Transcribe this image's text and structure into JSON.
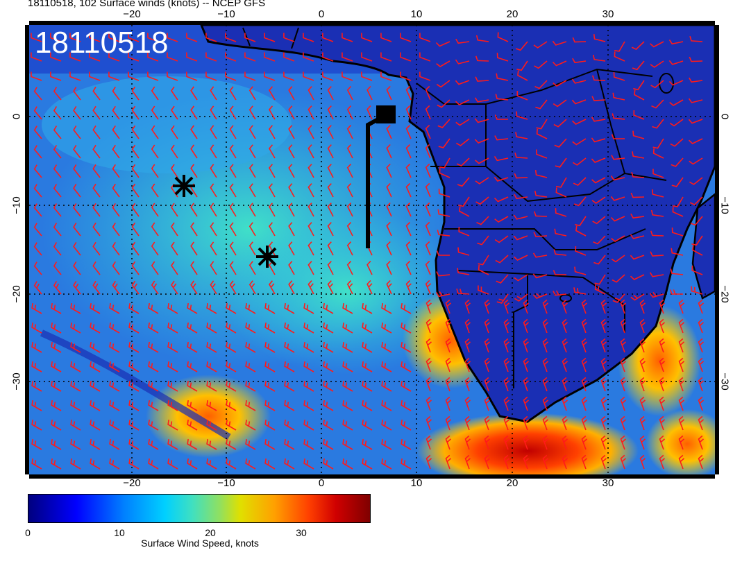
{
  "title": "18110518, 102 Surface winds (knots) -- NCEP GFS",
  "stamp": "18110518",
  "x_ticks": [
    "−20",
    "−10",
    "0",
    "10",
    "20",
    "30"
  ],
  "y_ticks": [
    "0",
    "−10",
    "−20",
    "−30"
  ],
  "colorbar": {
    "label": "Surface Wind Speed, knots",
    "ticks": [
      "0",
      "10",
      "20",
      "30"
    ],
    "range": [
      0,
      36
    ]
  },
  "colors": {
    "barb": "#ff1a1a",
    "ocean_low": "#1e5adc",
    "ocean_mid": "#23c0e6",
    "land": "#1a2fb4",
    "high": "#ff3000",
    "coast": "#000000"
  },
  "markers": [
    {
      "type": "asterisk",
      "lon": -14.5,
      "lat": -8.5
    },
    {
      "type": "asterisk",
      "lon": -5.5,
      "lat": -16
    },
    {
      "type": "square-flag",
      "lon": 6.5,
      "lat": 0
    }
  ],
  "map": {
    "lon_range": [
      -30,
      40
    ],
    "lat_range": [
      -40,
      10
    ]
  }
}
